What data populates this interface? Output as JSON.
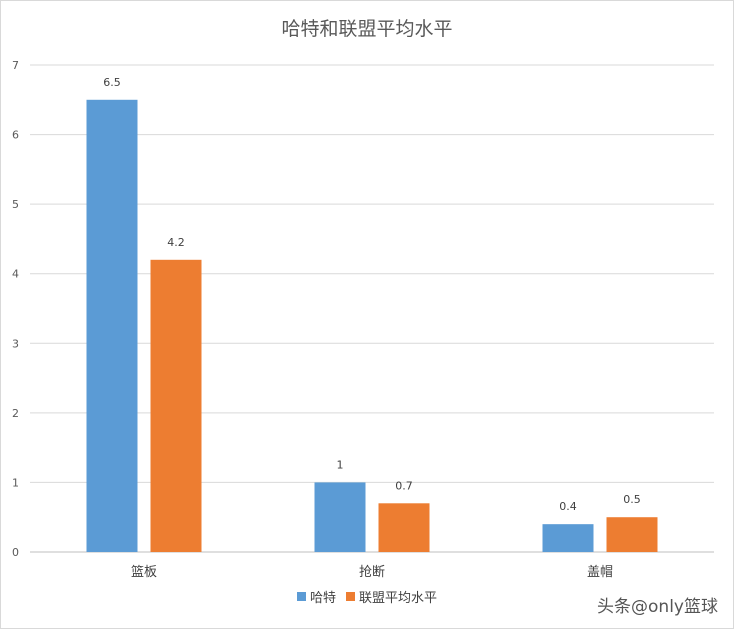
{
  "chart_data": {
    "type": "bar",
    "title": "哈特和联盟平均水平",
    "categories": [
      "篮板",
      "抢断",
      "盖帽"
    ],
    "series": [
      {
        "name": "哈特",
        "values": [
          6.5,
          1,
          0.4
        ],
        "color": "#5b9bd5"
      },
      {
        "name": "联盟平均水平",
        "values": [
          4.2,
          0.7,
          0.5
        ],
        "color": "#ed7d31"
      }
    ],
    "ylim": [
      0,
      7
    ],
    "yticks": [
      0,
      1,
      2,
      3,
      4,
      5,
      6,
      7
    ],
    "grid": true,
    "legend": "bottom"
  },
  "watermark": "头条@only篮球"
}
